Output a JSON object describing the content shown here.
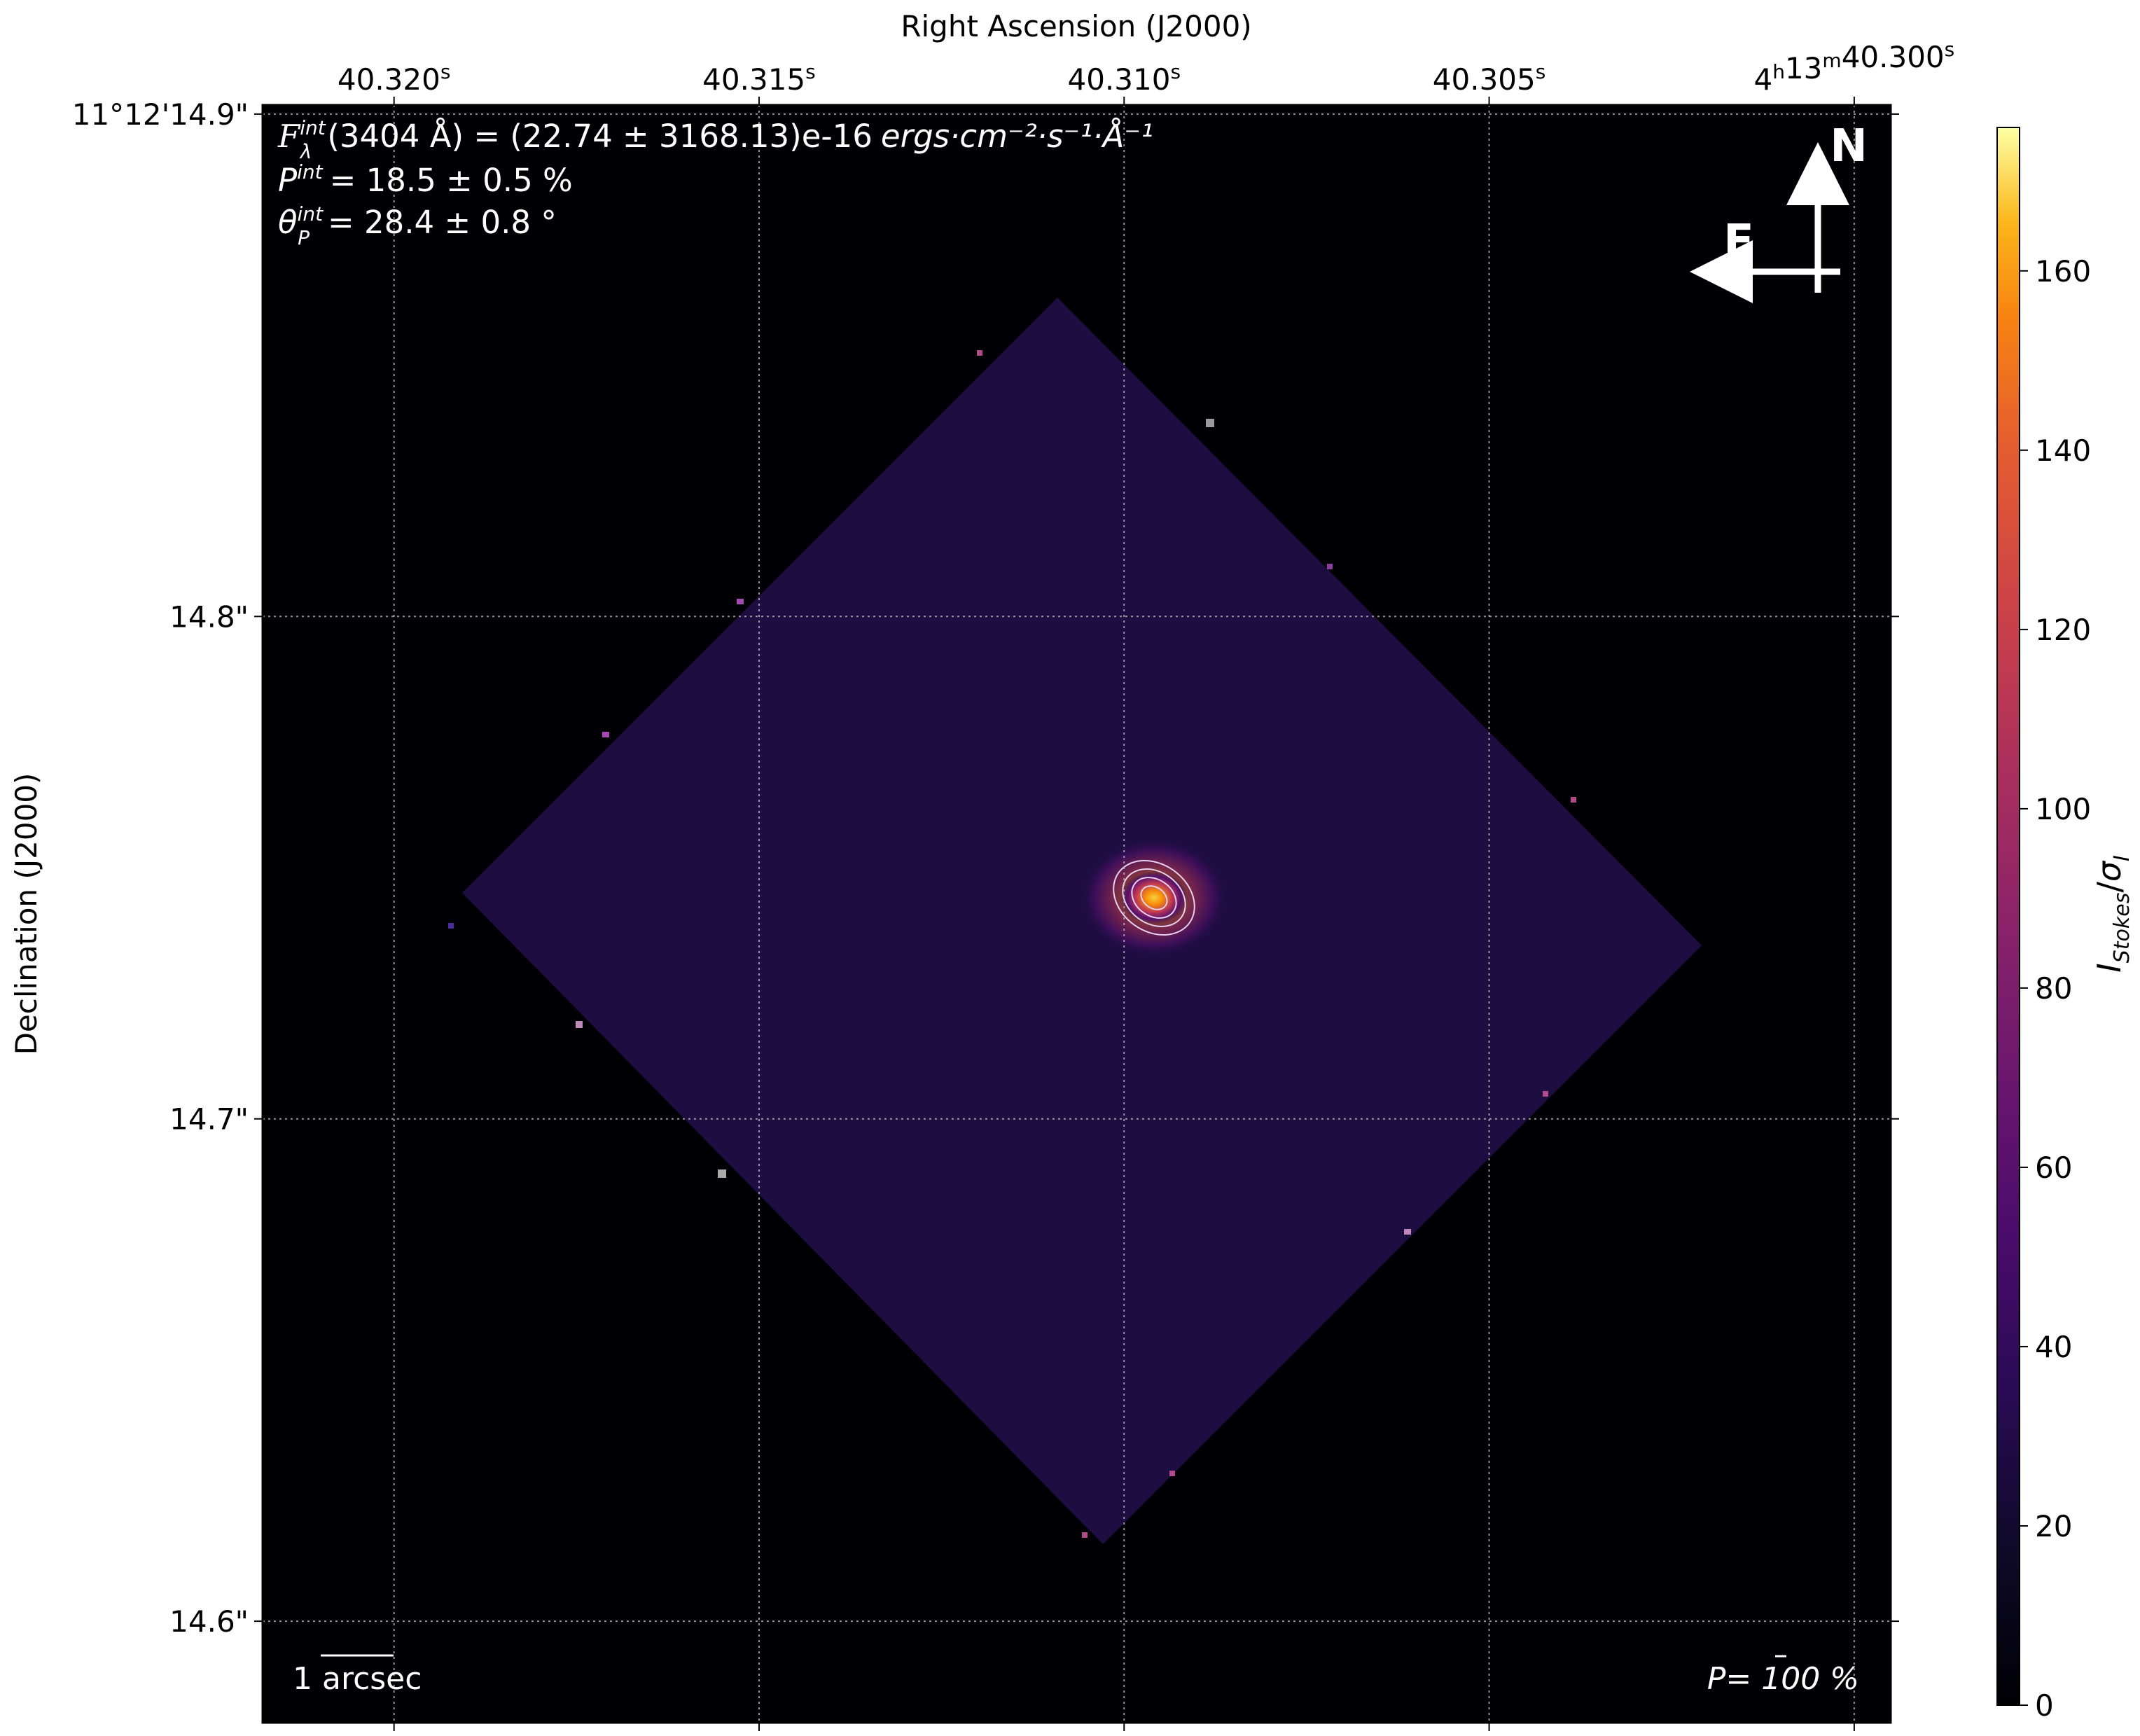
{
  "chart_data": {
    "type": "heatmap",
    "colormap": "inferno",
    "xlabel": "Right Ascension (J2000)",
    "ylabel": "Declination (J2000)",
    "x_ticks": [
      {
        "ra_s": 40.32,
        "h": "",
        "m": "",
        "s": "40.320"
      },
      {
        "ra_s": 40.315,
        "h": "",
        "m": "",
        "s": "40.315"
      },
      {
        "ra_s": 40.31,
        "h": "",
        "m": "",
        "s": "40.310"
      },
      {
        "ra_s": 40.305,
        "h": "",
        "m": "",
        "s": "40.305"
      },
      {
        "ra_s": 40.3,
        "h": "4",
        "m": "13",
        "s": "40.300"
      }
    ],
    "x_range_s": [
      40.3218,
      40.2995
    ],
    "y_ticks": [
      {
        "dec_arcsec": 14.9,
        "label": "11°12'14.9\""
      },
      {
        "dec_arcsec": 14.8,
        "label": "14.8\""
      },
      {
        "dec_arcsec": 14.7,
        "label": "14.7\""
      },
      {
        "dec_arcsec": 14.6,
        "label": "14.6\""
      }
    ],
    "y_range_arcsec": [
      14.5798,
      14.9018
    ],
    "grid": true,
    "colorbar": {
      "label": "I_Stokes/σ_I",
      "range": [
        0,
        176
      ],
      "ticks": [
        0,
        20,
        40,
        60,
        80,
        100,
        120,
        140,
        160
      ]
    },
    "annotations": {
      "flux": {
        "main": "(3404 Å) = (22.74 ± 3168.13)e-16",
        "units": "ergs·cm⁻²·s⁻¹·Å⁻¹"
      },
      "pol_degree": "= 18.5 ± 0.5 %",
      "pol_angle": "= 28.4 ± 0.8 °",
      "scale_bar": "1 arcsec",
      "pol_scale": "P= 100 %",
      "north": "N",
      "east": "E"
    },
    "source": {
      "ra_s": 40.3104,
      "dec_arcsec": 14.744,
      "peak": 150
    }
  }
}
